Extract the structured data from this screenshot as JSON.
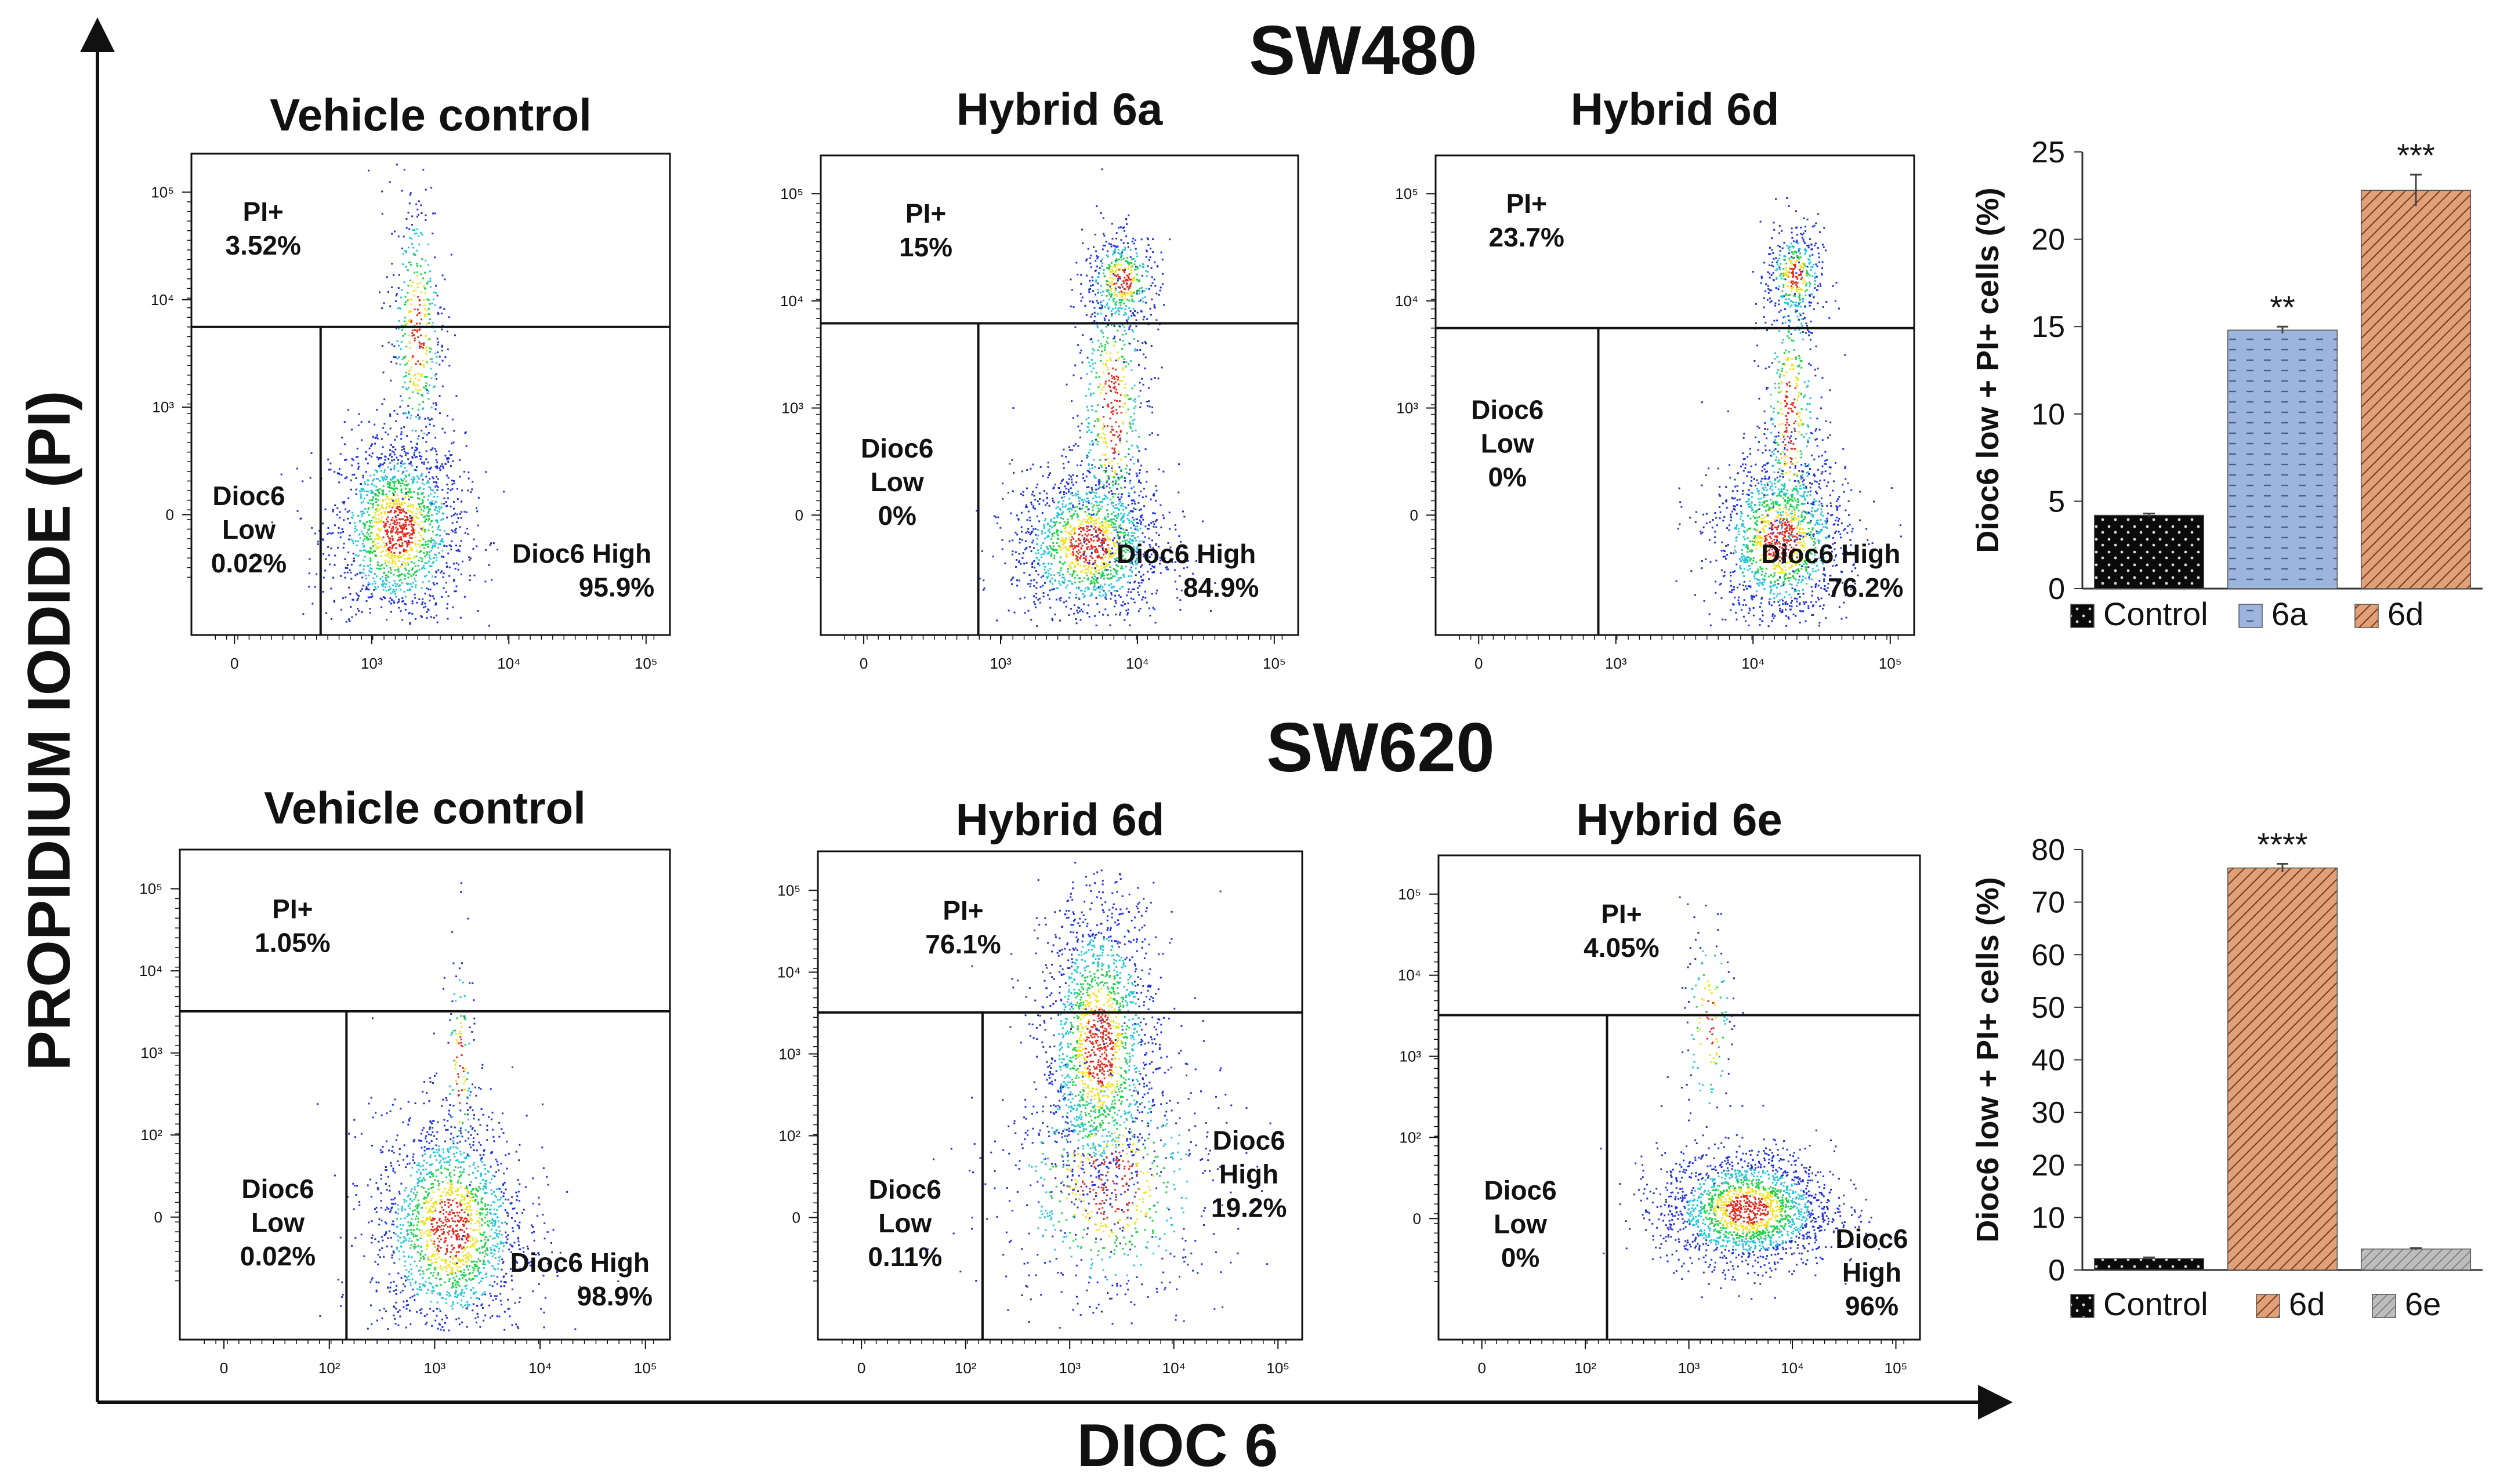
{
  "figure": {
    "y_axis_label": "PROPIDIUM IODIDE (PI)",
    "x_axis_label": "DIOC 6",
    "row_titles": [
      "SW480",
      "SW620"
    ]
  },
  "colors": {
    "dot_blue": "#1f2fe0",
    "dot_cyan": "#21c6d6",
    "dot_green": "#1fd24a",
    "dot_yellow": "#f2e21b",
    "dot_red": "#e5281c",
    "bar_control": "#0a0a0a",
    "bar_6a": "#9db4dd",
    "bar_6d": "#e0a07a",
    "bar_6e": "#bdbdbd"
  },
  "chart_data": [
    {
      "type": "scatter",
      "title": "Vehicle control",
      "row": "SW480",
      "x_ticks": [
        "0",
        "10³",
        "10⁴",
        "10⁵"
      ],
      "y_ticks": [
        "0",
        "10³",
        "10⁴",
        "10⁵"
      ],
      "quadrants": [
        {
          "name": "PI+",
          "value": "3.52%"
        },
        {
          "name": "Dioc6 Low",
          "value": "0.02%"
        },
        {
          "name": "Dioc6 High",
          "value": "95.9%"
        }
      ]
    },
    {
      "type": "scatter",
      "title": "Hybrid 6a",
      "row": "SW480",
      "x_ticks": [
        "0",
        "10³",
        "10⁴",
        "10⁵"
      ],
      "y_ticks": [
        "0",
        "10³",
        "10⁴",
        "10⁵"
      ],
      "quadrants": [
        {
          "name": "PI+",
          "value": "15%"
        },
        {
          "name": "Dioc6 Low",
          "value": "0%"
        },
        {
          "name": "Dioc6 High",
          "value": "84.9%"
        }
      ]
    },
    {
      "type": "scatter",
      "title": "Hybrid 6d",
      "row": "SW480",
      "x_ticks": [
        "0",
        "10³",
        "10⁴",
        "10⁵"
      ],
      "y_ticks": [
        "0",
        "10³",
        "10⁴",
        "10⁵"
      ],
      "quadrants": [
        {
          "name": "PI+",
          "value": "23.7%"
        },
        {
          "name": "Dioc6 Low",
          "value": "0%"
        },
        {
          "name": "Dioc6 High",
          "value": "76.2%"
        }
      ]
    },
    {
      "type": "bar",
      "row": "SW480",
      "ylabel": "Dioc6 low + PI+ cells (%)",
      "ylim": [
        0,
        25
      ],
      "y_ticks": [
        0,
        5,
        10,
        15,
        20,
        25
      ],
      "categories": [
        "Control",
        "6a",
        "6d"
      ],
      "values": [
        4.2,
        14.8,
        22.8
      ],
      "errors": [
        0.1,
        0.2,
        0.9
      ],
      "significance": [
        "",
        "**",
        "***"
      ]
    },
    {
      "type": "scatter",
      "title": "Vehicle control",
      "row": "SW620",
      "x_ticks": [
        "0",
        "10²",
        "10³",
        "10⁴",
        "10⁵"
      ],
      "y_ticks": [
        "0",
        "10²",
        "10³",
        "10⁴",
        "10⁵"
      ],
      "quadrants": [
        {
          "name": "PI+",
          "value": "1.05%"
        },
        {
          "name": "Dioc6 Low",
          "value": "0.02%"
        },
        {
          "name": "Dioc6 High",
          "value": "98.9%"
        }
      ]
    },
    {
      "type": "scatter",
      "title": "Hybrid 6d",
      "row": "SW620",
      "x_ticks": [
        "0",
        "10²",
        "10³",
        "10⁴",
        "10⁵"
      ],
      "y_ticks": [
        "0",
        "10²",
        "10³",
        "10⁴",
        "10⁵"
      ],
      "quadrants": [
        {
          "name": "PI+",
          "value": "76.1%"
        },
        {
          "name": "Dioc6 Low",
          "value": "0.11%"
        },
        {
          "name": "Dioc6 High",
          "value": "19.2%"
        }
      ]
    },
    {
      "type": "scatter",
      "title": "Hybrid 6e",
      "row": "SW620",
      "x_ticks": [
        "0",
        "10²",
        "10³",
        "10⁴",
        "10⁵"
      ],
      "y_ticks": [
        "0",
        "10²",
        "10³",
        "10⁴",
        "10⁵"
      ],
      "quadrants": [
        {
          "name": "PI+",
          "value": "4.05%"
        },
        {
          "name": "Dioc6 Low",
          "value": "0%"
        },
        {
          "name": "Dioc6 High",
          "value": "96%"
        }
      ]
    },
    {
      "type": "bar",
      "row": "SW620",
      "ylabel": "Dioc6 low + PI+ cells (%)",
      "ylim": [
        0,
        80
      ],
      "y_ticks": [
        0,
        10,
        20,
        30,
        40,
        50,
        60,
        70,
        80
      ],
      "categories": [
        "Control",
        "6d",
        "6e"
      ],
      "values": [
        2.2,
        76.5,
        4.0
      ],
      "errors": [
        0.2,
        0.8,
        0.2
      ],
      "significance": [
        "",
        "****",
        ""
      ]
    }
  ]
}
